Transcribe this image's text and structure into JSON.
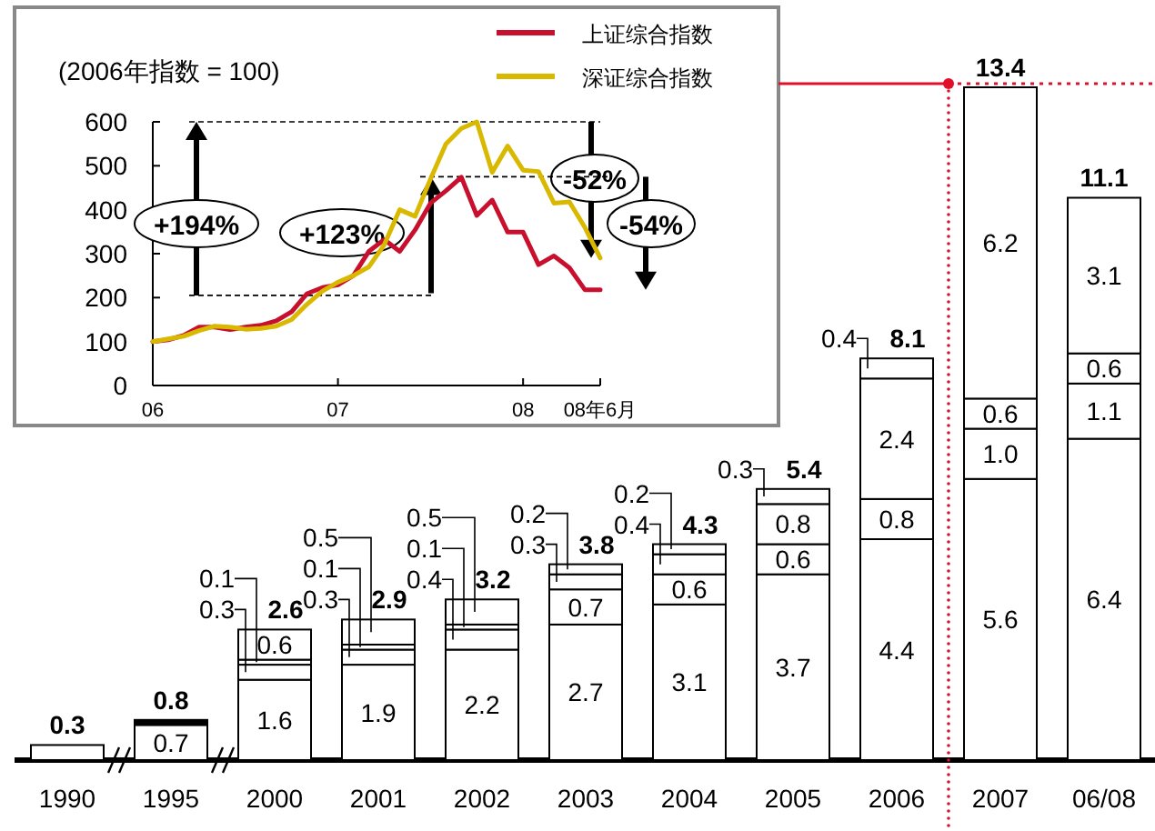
{
  "chart_data": [
    {
      "type": "line",
      "ylabel": "(2006年指数 = 100)",
      "legend": "top right",
      "grid": false,
      "x": [
        "2006-01",
        "2006-02",
        "2006-03",
        "2006-04",
        "2006-05",
        "2006-06",
        "2006-07",
        "2006-08",
        "2006-09",
        "2006-10",
        "2006-11",
        "2006-12",
        "2007-01",
        "2007-02",
        "2007-03",
        "2007-04",
        "2007-05",
        "2007-06",
        "2007-07",
        "2007-08",
        "2007-09",
        "2007-10",
        "2007-11",
        "2007-12",
        "2008-01",
        "2008-02",
        "2008-03",
        "2008-04",
        "2008-05",
        "2008-06"
      ],
      "xlim": [
        "2006-01",
        "2008-06"
      ],
      "xticks": [
        {
          "value": "2006-01",
          "label": "06"
        },
        {
          "value": "2007-01",
          "label": "07"
        },
        {
          "value": "2008-01",
          "label": "08"
        },
        {
          "value": "2008-06",
          "label": "08年6月"
        }
      ],
      "ylim": [
        0,
        600
      ],
      "yticks": [
        0,
        100,
        200,
        300,
        400,
        500,
        600
      ],
      "series": [
        {
          "name": "上证综合指数",
          "color": "#c8102e",
          "values": [
            100,
            104,
            114,
            133,
            133,
            127,
            133,
            137,
            147,
            168,
            209,
            223,
            229,
            250,
            305,
            332,
            305,
            354,
            415,
            443,
            474,
            387,
            422,
            349,
            349,
            275,
            295,
            268,
            218,
            218
          ]
        },
        {
          "name": "深证综合指数",
          "color": "#d9b800",
          "values": [
            100,
            106,
            112,
            125,
            135,
            133,
            128,
            130,
            135,
            150,
            185,
            215,
            235,
            250,
            270,
            320,
            400,
            385,
            470,
            550,
            585,
            600,
            485,
            545,
            490,
            487,
            415,
            418,
            360,
            290
          ]
        }
      ],
      "ref_lines": [
        {
          "axis": "y",
          "value": 205,
          "line_style": "dashed"
        },
        {
          "axis": "y",
          "value": 600,
          "line_style": "dashed"
        },
        {
          "axis": "y",
          "value": 475,
          "line_style": "dashed"
        }
      ],
      "annotations": [
        "+194%",
        "+123%",
        "-52%",
        "-54%"
      ]
    },
    {
      "type": "bar",
      "stacked": true,
      "categories": [
        "1990",
        "1995",
        "2000",
        "2001",
        "2002",
        "2003",
        "2004",
        "2005",
        "2006",
        "2007",
        "06/08"
      ],
      "series": [
        {
          "color": "#ffffff",
          "values": [
            0.3,
            0.7,
            1.6,
            1.9,
            2.2,
            2.7,
            3.1,
            3.7,
            4.4,
            5.6,
            6.4
          ],
          "value_labels": [
            null,
            "0.7",
            "1.6",
            "1.9",
            "2.2",
            "2.7",
            "3.1",
            "3.7",
            "4.4",
            "5.6",
            "6.4"
          ]
        },
        {
          "colors": [
            "#ffffff",
            "#000000",
            "#ffffff",
            "#ffffff",
            "#ffffff",
            "#ffffff",
            "#ffffff",
            "#ffffff",
            "#ffffff",
            "#ffffff",
            "#ffffff"
          ],
          "values": [
            null,
            0.1,
            0.3,
            0.3,
            0.4,
            0.7,
            0.6,
            0.6,
            0.8,
            1.0,
            1.1
          ],
          "value_labels": [
            null,
            null,
            "0.3",
            "0.3",
            "0.4",
            "0.7",
            "0.6",
            "0.6",
            "0.8",
            "1.0",
            "1.1"
          ]
        },
        {
          "color": "#ffffff",
          "values": [
            null,
            null,
            0.1,
            0.1,
            0.1,
            0.3,
            0.4,
            0.8,
            2.4,
            0.6,
            0.6
          ],
          "value_labels": [
            null,
            null,
            "0.1",
            "0.1",
            "0.1",
            "0.3",
            "0.4",
            "0.8",
            "2.4",
            "0.6",
            "0.6"
          ]
        },
        {
          "color": "#ffffff",
          "values": [
            null,
            null,
            0.6,
            0.5,
            0.5,
            0.2,
            0.2,
            0.3,
            0.4,
            6.2,
            3.1
          ],
          "value_labels": [
            null,
            null,
            "0.6",
            "0.5",
            "0.5",
            "0.2",
            "0.2",
            "0.3",
            "0.4",
            "6.2",
            "3.1"
          ]
        }
      ],
      "totals": [
        "0.3",
        "0.8",
        "2.6",
        "2.9",
        "3.2",
        "3.8",
        "4.3",
        "5.4",
        "8.1",
        "13.4",
        "11.1"
      ]
    }
  ]
}
